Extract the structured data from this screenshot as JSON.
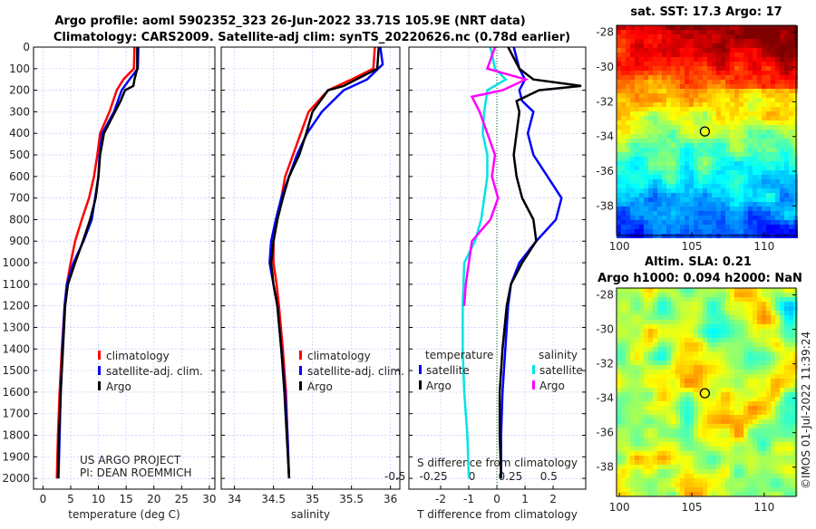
{
  "title_line1": "Argo profile: aoml 5902352_323 26-Jun-2022 33.71S 105.9E (NRT data)",
  "title_line2": "Climatology: CARS2009. Satellite-adj clim: synTS_20220626.nc (0.78d earlier)",
  "colors": {
    "climatology": "#ff0000",
    "satellite": "#0000ff",
    "argo": "#000000",
    "sal_satellite": "#00e5e5",
    "sal_argo": "#ff00ff"
  },
  "chart_data": [
    {
      "type": "line",
      "name": "temperature",
      "xlabel": "temperature (deg C)",
      "ylabel": "depth",
      "xlim": [
        -1.7,
        31
      ],
      "ylim": [
        2050,
        0
      ],
      "xticks": [
        0,
        5,
        10,
        15,
        20,
        25,
        30
      ],
      "yticks": [
        0,
        100,
        200,
        300,
        400,
        500,
        600,
        700,
        800,
        900,
        1000,
        1100,
        1200,
        1300,
        1400,
        1500,
        1600,
        1700,
        1800,
        1900,
        2000
      ],
      "legend": [
        "climatology",
        "satellite-adj. clim.",
        "Argo"
      ],
      "legend_position": "bottom-right",
      "annotation": [
        "US ARGO PROJECT",
        "PI: DEAN ROEMMICH"
      ],
      "series": [
        {
          "name": "climatology",
          "color": "#ff0000",
          "depth": [
            0,
            100,
            150,
            200,
            300,
            400,
            500,
            600,
            700,
            800,
            900,
            1000,
            1100,
            1200,
            1400,
            1600,
            1800,
            2000
          ],
          "values": [
            16.5,
            16.4,
            14.5,
            13.3,
            12.0,
            10.3,
            9.8,
            9.2,
            8.3,
            7.0,
            5.8,
            5.0,
            4.3,
            3.9,
            3.4,
            3.0,
            2.7,
            2.5
          ]
        },
        {
          "name": "satellite-adj. clim.",
          "color": "#0000ff",
          "depth": [
            0,
            100,
            150,
            200,
            300,
            400,
            500,
            600,
            700,
            800,
            900,
            1000,
            1100,
            1200,
            1400,
            1600,
            1800,
            2000
          ],
          "values": [
            17.2,
            17.1,
            15.6,
            14.2,
            12.8,
            10.7,
            10.2,
            10.0,
            9.4,
            8.8,
            7.3,
            5.5,
            4.3,
            3.9,
            3.5,
            3.2,
            3.0,
            2.8
          ]
        },
        {
          "name": "Argo",
          "color": "#000000",
          "depth": [
            0,
            50,
            100,
            150,
            180,
            200,
            250,
            300,
            400,
            500,
            600,
            700,
            800,
            900,
            1000,
            1100,
            1200,
            1400,
            1600,
            1800,
            2000
          ],
          "values": [
            17.0,
            17.0,
            17.0,
            16.5,
            16.3,
            14.8,
            14.0,
            13.0,
            11.0,
            10.3,
            10.0,
            9.5,
            8.5,
            7.2,
            5.8,
            4.5,
            4.0,
            3.6,
            3.2,
            2.9,
            2.7
          ]
        }
      ]
    },
    {
      "type": "line",
      "name": "salinity",
      "xlabel": "salinity",
      "xlim": [
        33.83,
        36.12
      ],
      "ylim": [
        2050,
        0
      ],
      "xticks": [
        34,
        34.5,
        35,
        35.5,
        36
      ],
      "legend": [
        "climatology",
        "satellite-adj. clim.",
        "Argo"
      ],
      "legend_position": "bottom-right",
      "series": [
        {
          "name": "climatology",
          "color": "#ff0000",
          "depth": [
            0,
            100,
            150,
            200,
            300,
            400,
            500,
            600,
            700,
            800,
            900,
            1000,
            1100,
            1200,
            1400,
            1600,
            1800,
            2000
          ],
          "values": [
            35.8,
            35.78,
            35.5,
            35.2,
            34.95,
            34.85,
            34.75,
            34.65,
            34.6,
            34.55,
            34.5,
            34.5,
            34.54,
            34.57,
            34.62,
            34.66,
            34.68,
            34.7
          ]
        },
        {
          "name": "satellite-adj. clim.",
          "color": "#0000ff",
          "depth": [
            0,
            80,
            150,
            200,
            300,
            400,
            500,
            600,
            700,
            800,
            900,
            1000,
            1100,
            1200,
            1400,
            1600,
            1800,
            2000
          ],
          "values": [
            35.87,
            35.9,
            35.7,
            35.4,
            35.12,
            34.93,
            34.8,
            34.7,
            34.6,
            34.53,
            34.47,
            34.45,
            34.5,
            34.55,
            34.6,
            34.65,
            34.68,
            34.7
          ]
        },
        {
          "name": "Argo",
          "color": "#000000",
          "depth": [
            0,
            100,
            180,
            200,
            250,
            300,
            400,
            500,
            600,
            700,
            800,
            900,
            1000,
            1100,
            1200,
            1400,
            1600,
            1800,
            2000
          ],
          "values": [
            35.85,
            35.83,
            35.4,
            35.2,
            35.1,
            35.0,
            34.92,
            34.83,
            34.7,
            34.62,
            34.55,
            34.5,
            34.47,
            34.5,
            34.55,
            34.6,
            34.64,
            34.67,
            34.7
          ]
        }
      ]
    },
    {
      "type": "line",
      "name": "difference",
      "xlabel": "T difference from climatology",
      "x2label": "S difference from climatology",
      "xlim": [
        -3.13,
        3.16
      ],
      "x2lim": [
        -0.41,
        0.74
      ],
      "ylim": [
        2050,
        0
      ],
      "xticks": [
        -2,
        -1,
        0,
        1,
        2
      ],
      "x2ticks": [
        -0.5,
        -0.25,
        0,
        0.25,
        0.5
      ],
      "legend_t": {
        "title": "temperature",
        "items": [
          "satellite",
          "Argo"
        ]
      },
      "legend_s": {
        "title": "salinity",
        "items": [
          "satellite",
          "Argo"
        ]
      },
      "series": [
        {
          "name": "T satellite",
          "axis": "T",
          "color": "#0000ff",
          "depth": [
            0,
            50,
            100,
            150,
            200,
            250,
            300,
            400,
            500,
            600,
            700,
            800,
            900,
            1000,
            1100,
            1200,
            1400,
            1600,
            1800,
            2000
          ],
          "values": [
            0.6,
            0.7,
            0.8,
            1.0,
            0.8,
            0.9,
            1.3,
            1.1,
            1.3,
            1.8,
            2.3,
            2.1,
            1.4,
            0.8,
            0.5,
            0.4,
            0.3,
            0.2,
            0.15,
            0.15
          ]
        },
        {
          "name": "T Argo",
          "axis": "T",
          "color": "#000000",
          "depth": [
            0,
            50,
            100,
            150,
            180,
            200,
            250,
            300,
            400,
            500,
            600,
            700,
            800,
            900,
            1000,
            1100,
            1200,
            1400,
            1600,
            1800,
            2000
          ],
          "values": [
            0.4,
            0.6,
            0.8,
            1.3,
            3.0,
            1.5,
            0.7,
            0.8,
            0.7,
            0.6,
            0.7,
            0.9,
            1.3,
            1.4,
            0.9,
            0.5,
            0.35,
            0.2,
            0.1,
            0.1,
            0.15
          ]
        },
        {
          "name": "S satellite",
          "axis": "S",
          "color": "#00e5e5",
          "depth": [
            0,
            100,
            150,
            200,
            300,
            400,
            500,
            600,
            700,
            800,
            900,
            1000,
            1200,
            1400,
            1600,
            1800,
            2000
          ],
          "values": [
            0.12,
            0.15,
            0.22,
            0.1,
            0.08,
            0.07,
            0.1,
            0.1,
            0.08,
            0.06,
            0.02,
            -0.05,
            -0.06,
            -0.06,
            -0.05,
            -0.03,
            -0.02
          ]
        },
        {
          "name": "S Argo",
          "axis": "S",
          "color": "#ff00ff",
          "depth": [
            0,
            100,
            150,
            200,
            230,
            300,
            400,
            500,
            600,
            700,
            800,
            900,
            1000,
            1100,
            1200
          ],
          "values": [
            0.15,
            0.1,
            0.35,
            0.2,
            0.0,
            0.05,
            0.1,
            0.15,
            0.13,
            0.17,
            0.12,
            0.0,
            -0.02,
            -0.04,
            -0.05
          ]
        }
      ]
    },
    {
      "type": "heatmap",
      "name": "sst-map",
      "title": "sat. SST: 17.3 Argo: 17",
      "xticks": [
        100,
        105,
        110
      ],
      "yticks": [
        -28,
        -30,
        -32,
        -34,
        -36,
        -38
      ],
      "xlim": [
        99.8,
        112.2
      ],
      "ylim": [
        -39.7,
        -27.6
      ],
      "marker": {
        "lon": 105.9,
        "lat": -33.71
      }
    },
    {
      "type": "heatmap",
      "name": "sla-map",
      "title_line1": "Altim. SLA: 0.21",
      "title_line2": "Argo h1000: 0.094 h2000: NaN",
      "xticks": [
        100,
        105,
        110
      ],
      "yticks": [
        -28,
        -30,
        -32,
        -34,
        -36,
        -38
      ],
      "xlim": [
        99.8,
        112.2
      ],
      "ylim": [
        -39.7,
        -27.6
      ],
      "marker": {
        "lon": 105.9,
        "lat": -33.71
      }
    }
  ],
  "copyright": "©IMOS 01-Jul-2022 11:39:24"
}
